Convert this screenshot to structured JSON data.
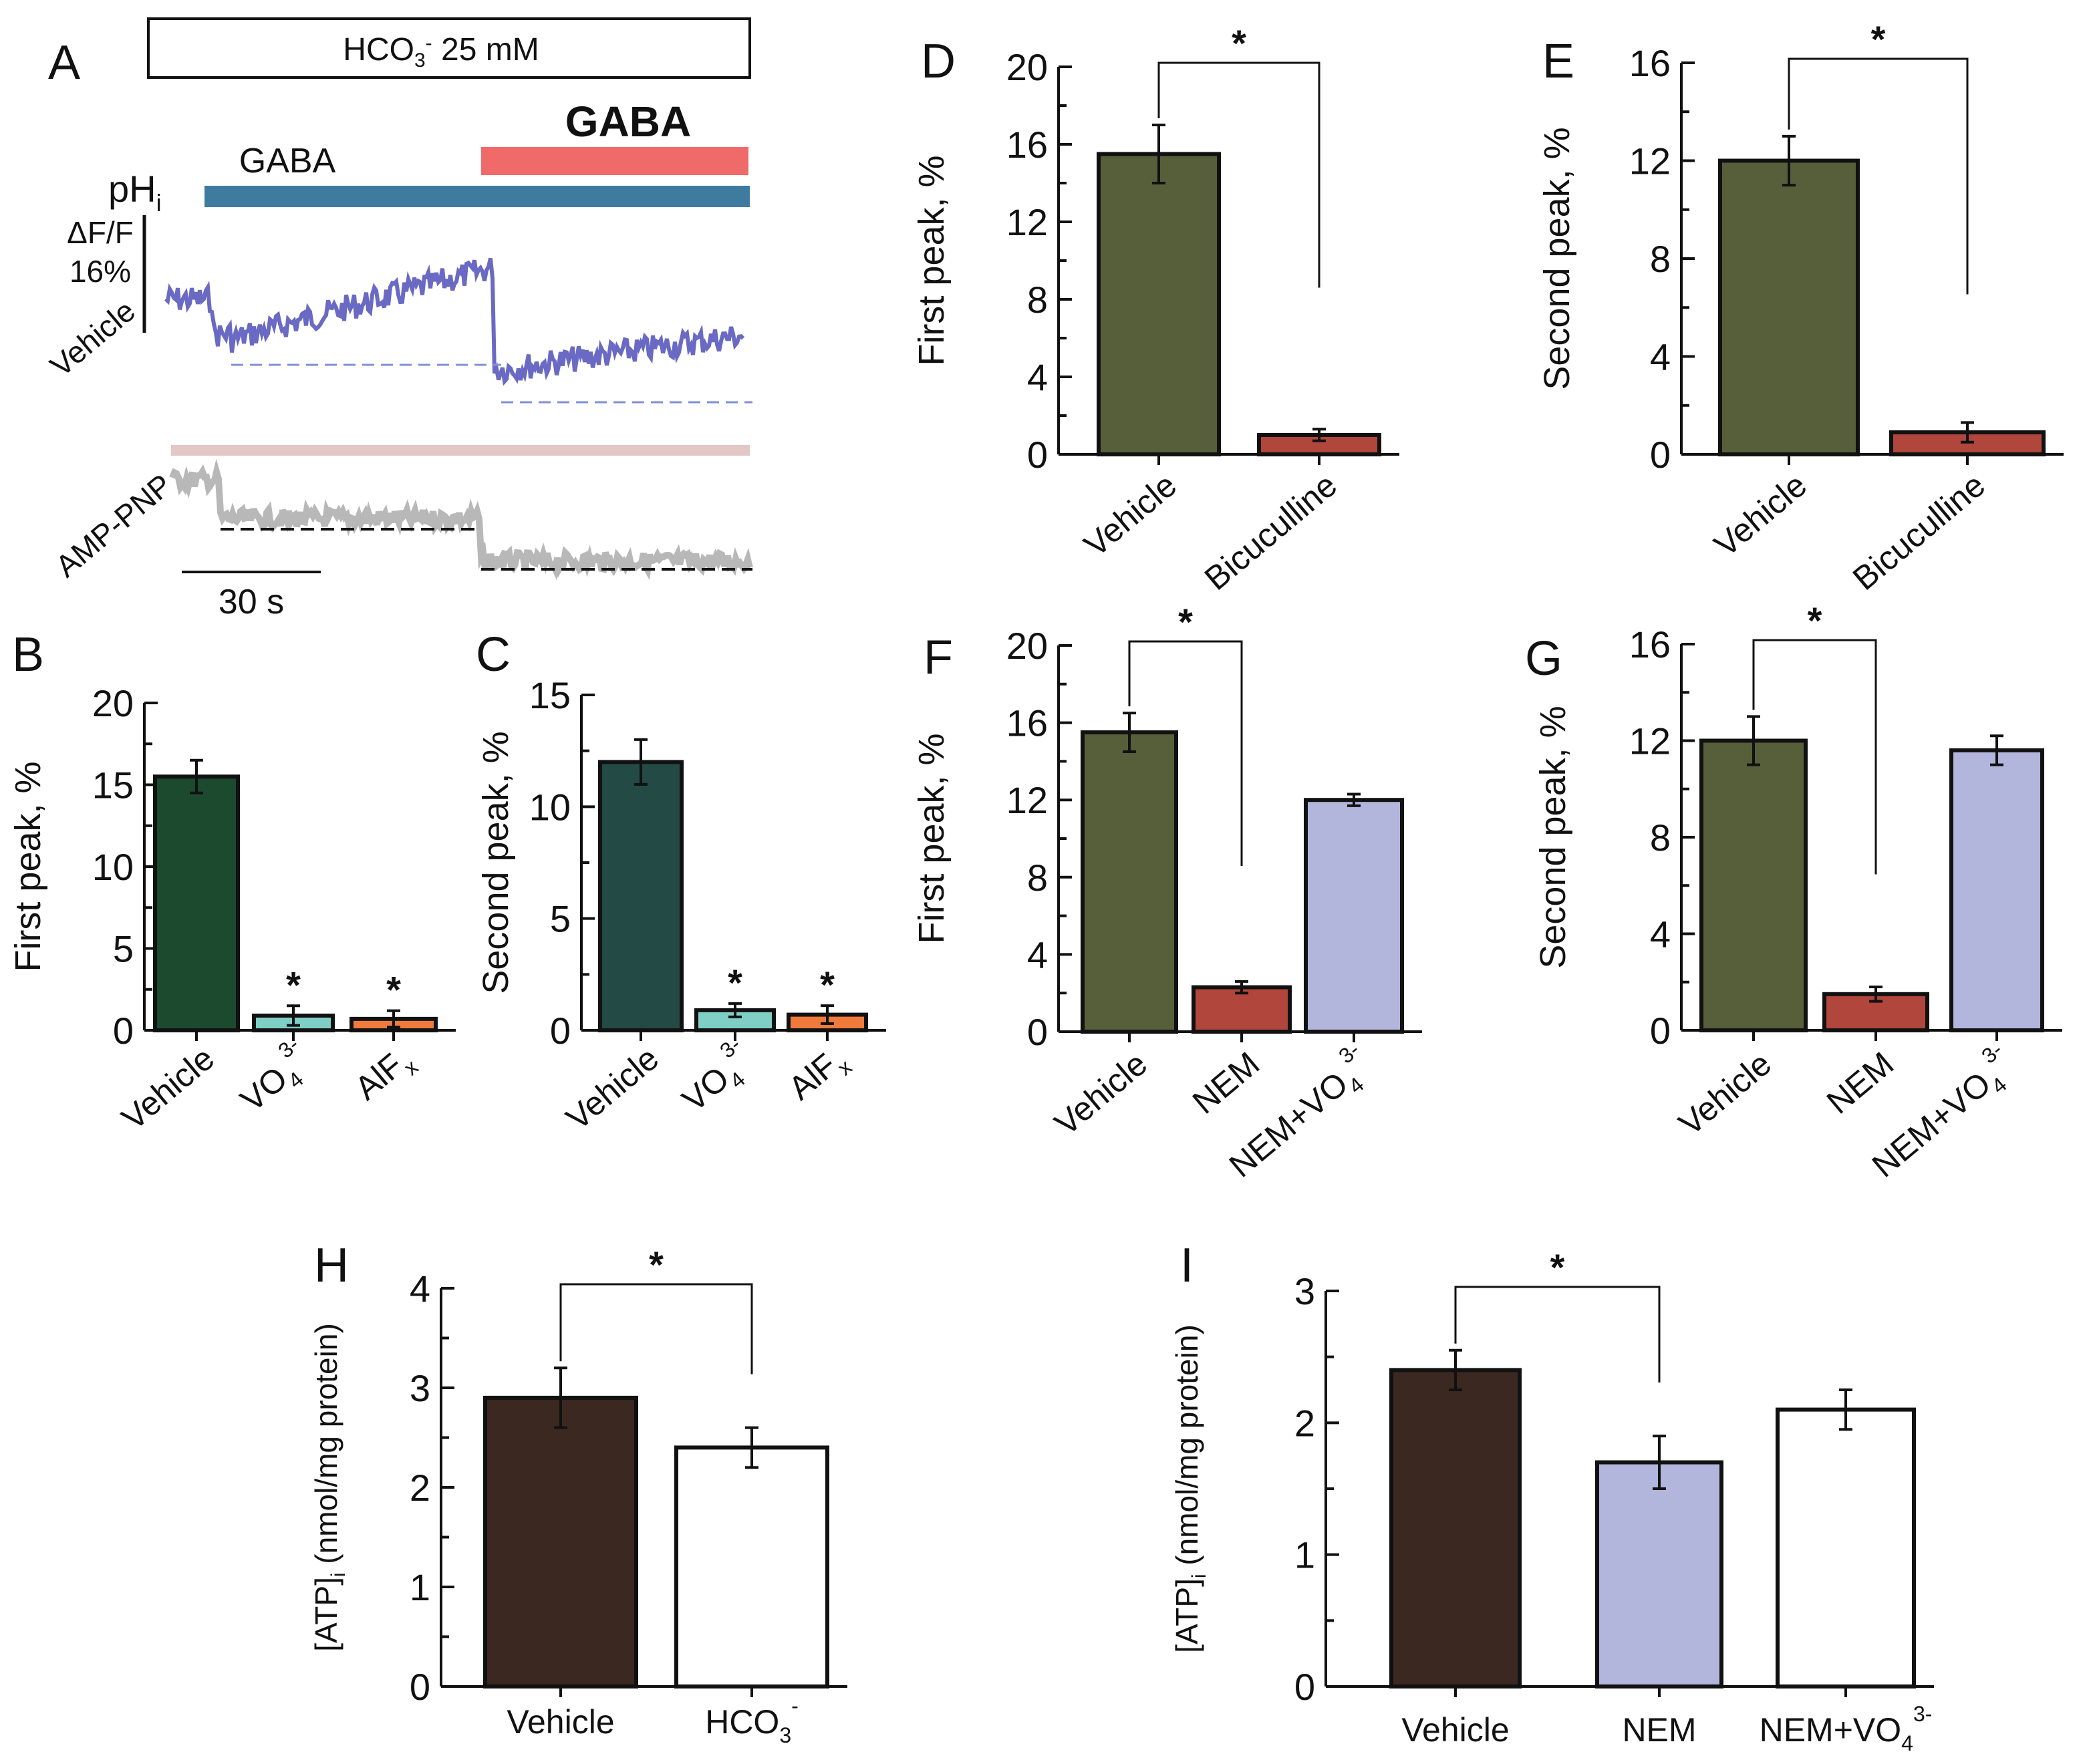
{
  "chart_data": [
    {
      "id": "A",
      "type": "line",
      "panel_label": "A",
      "condition_box": "HCO3- 25 mM",
      "application_bars": [
        "GABA",
        "GABA"
      ],
      "measure_label": "pHi",
      "trace_labels": [
        "Vehicle",
        "AMP-PNP"
      ],
      "amplitude_scale": "ΔF/F 16%",
      "time_scale": "30 s"
    },
    {
      "id": "B",
      "type": "bar",
      "panel_label": "B",
      "ylabel": "First peak, %",
      "categories": [
        "Vehicle",
        "VO43-",
        "AlFx"
      ],
      "values": [
        15.5,
        0.9,
        0.7
      ],
      "errors": [
        1.0,
        0.6,
        0.5
      ],
      "colors": [
        "#1b4a2f",
        "#7fcfc6",
        "#f07a3c"
      ],
      "ylim": [
        0,
        20
      ],
      "ticks": [
        0,
        5,
        10,
        15,
        20
      ],
      "significance": [
        "",
        "*",
        "*"
      ]
    },
    {
      "id": "C",
      "type": "bar",
      "panel_label": "C",
      "ylabel": "Second peak, %",
      "categories": [
        "Vehicle",
        "VO43-",
        "AlFx"
      ],
      "values": [
        12.0,
        0.9,
        0.7
      ],
      "errors": [
        1.0,
        0.3,
        0.4
      ],
      "colors": [
        "#234a45",
        "#7fcfc6",
        "#f07a3c"
      ],
      "ylim": [
        0,
        15
      ],
      "ticks": [
        0,
        5,
        10,
        15
      ],
      "significance": [
        "",
        "*",
        "*"
      ]
    },
    {
      "id": "D",
      "type": "bar",
      "panel_label": "D",
      "ylabel": "First peak, %",
      "categories": [
        "Vehicle",
        "Bicuculline"
      ],
      "values": [
        15.5,
        1.0
      ],
      "errors": [
        1.5,
        0.3
      ],
      "colors": [
        "#575e3a",
        "#b0463c"
      ],
      "ylim": [
        0,
        20
      ],
      "ticks": [
        0,
        4,
        8,
        12,
        16,
        20
      ],
      "comparison": {
        "star": "*"
      }
    },
    {
      "id": "E",
      "type": "bar",
      "panel_label": "E",
      "ylabel": "Second peak, %",
      "categories": [
        "Vehicle",
        "Bicuculline"
      ],
      "values": [
        12.0,
        0.9
      ],
      "errors": [
        1.0,
        0.4
      ],
      "colors": [
        "#575e3a",
        "#b0463c"
      ],
      "ylim": [
        0,
        16
      ],
      "ticks": [
        0,
        4,
        8,
        12,
        16
      ],
      "comparison": {
        "star": "*"
      }
    },
    {
      "id": "F",
      "type": "bar",
      "panel_label": "F",
      "ylabel": "First peak, %",
      "categories": [
        "Vehicle",
        "NEM",
        "NEM+VO43-"
      ],
      "values": [
        15.5,
        2.3,
        12.0
      ],
      "errors": [
        1.0,
        0.3,
        0.3
      ],
      "colors": [
        "#575e3a",
        "#b0463c",
        "#b2b5dc"
      ],
      "ylim": [
        0,
        20
      ],
      "ticks": [
        0,
        4,
        8,
        12,
        16,
        20
      ],
      "comparison": {
        "star": "*"
      }
    },
    {
      "id": "G",
      "type": "bar",
      "panel_label": "G",
      "ylabel": "Second peak, %",
      "categories": [
        "Vehicle",
        "NEM",
        "NEM+VO43-"
      ],
      "values": [
        12.0,
        1.5,
        11.6
      ],
      "errors": [
        1.0,
        0.3,
        0.6
      ],
      "colors": [
        "#575e3a",
        "#b0463c",
        "#b2b5dc"
      ],
      "ylim": [
        0,
        16
      ],
      "ticks": [
        0,
        4,
        8,
        12,
        16
      ],
      "comparison": {
        "star": "*"
      }
    },
    {
      "id": "H",
      "type": "bar",
      "panel_label": "H",
      "ylabel": "[ATP]i (nmol/mg protein)",
      "categories": [
        "Vehicle",
        "HCO3-"
      ],
      "values": [
        2.9,
        2.4
      ],
      "errors": [
        0.3,
        0.2
      ],
      "colors": [
        "#3b2820",
        "#ffffff"
      ],
      "ylim": [
        0,
        4
      ],
      "ticks": [
        0,
        1,
        2,
        3,
        4
      ],
      "comparison": {
        "star": "*"
      }
    },
    {
      "id": "I",
      "type": "bar",
      "panel_label": "I",
      "ylabel": "[ATP]i (nmol/mg protein)",
      "categories": [
        "Vehicle",
        "NEM",
        "NEM+VO43-"
      ],
      "values": [
        2.4,
        1.7,
        2.1
      ],
      "errors": [
        0.15,
        0.2,
        0.15
      ],
      "colors": [
        "#3b2820",
        "#b2b5dc",
        "#ffffff"
      ],
      "ylim": [
        0,
        3
      ],
      "ticks": [
        0,
        1,
        2,
        3
      ],
      "comparison": {
        "star": "*"
      }
    }
  ]
}
